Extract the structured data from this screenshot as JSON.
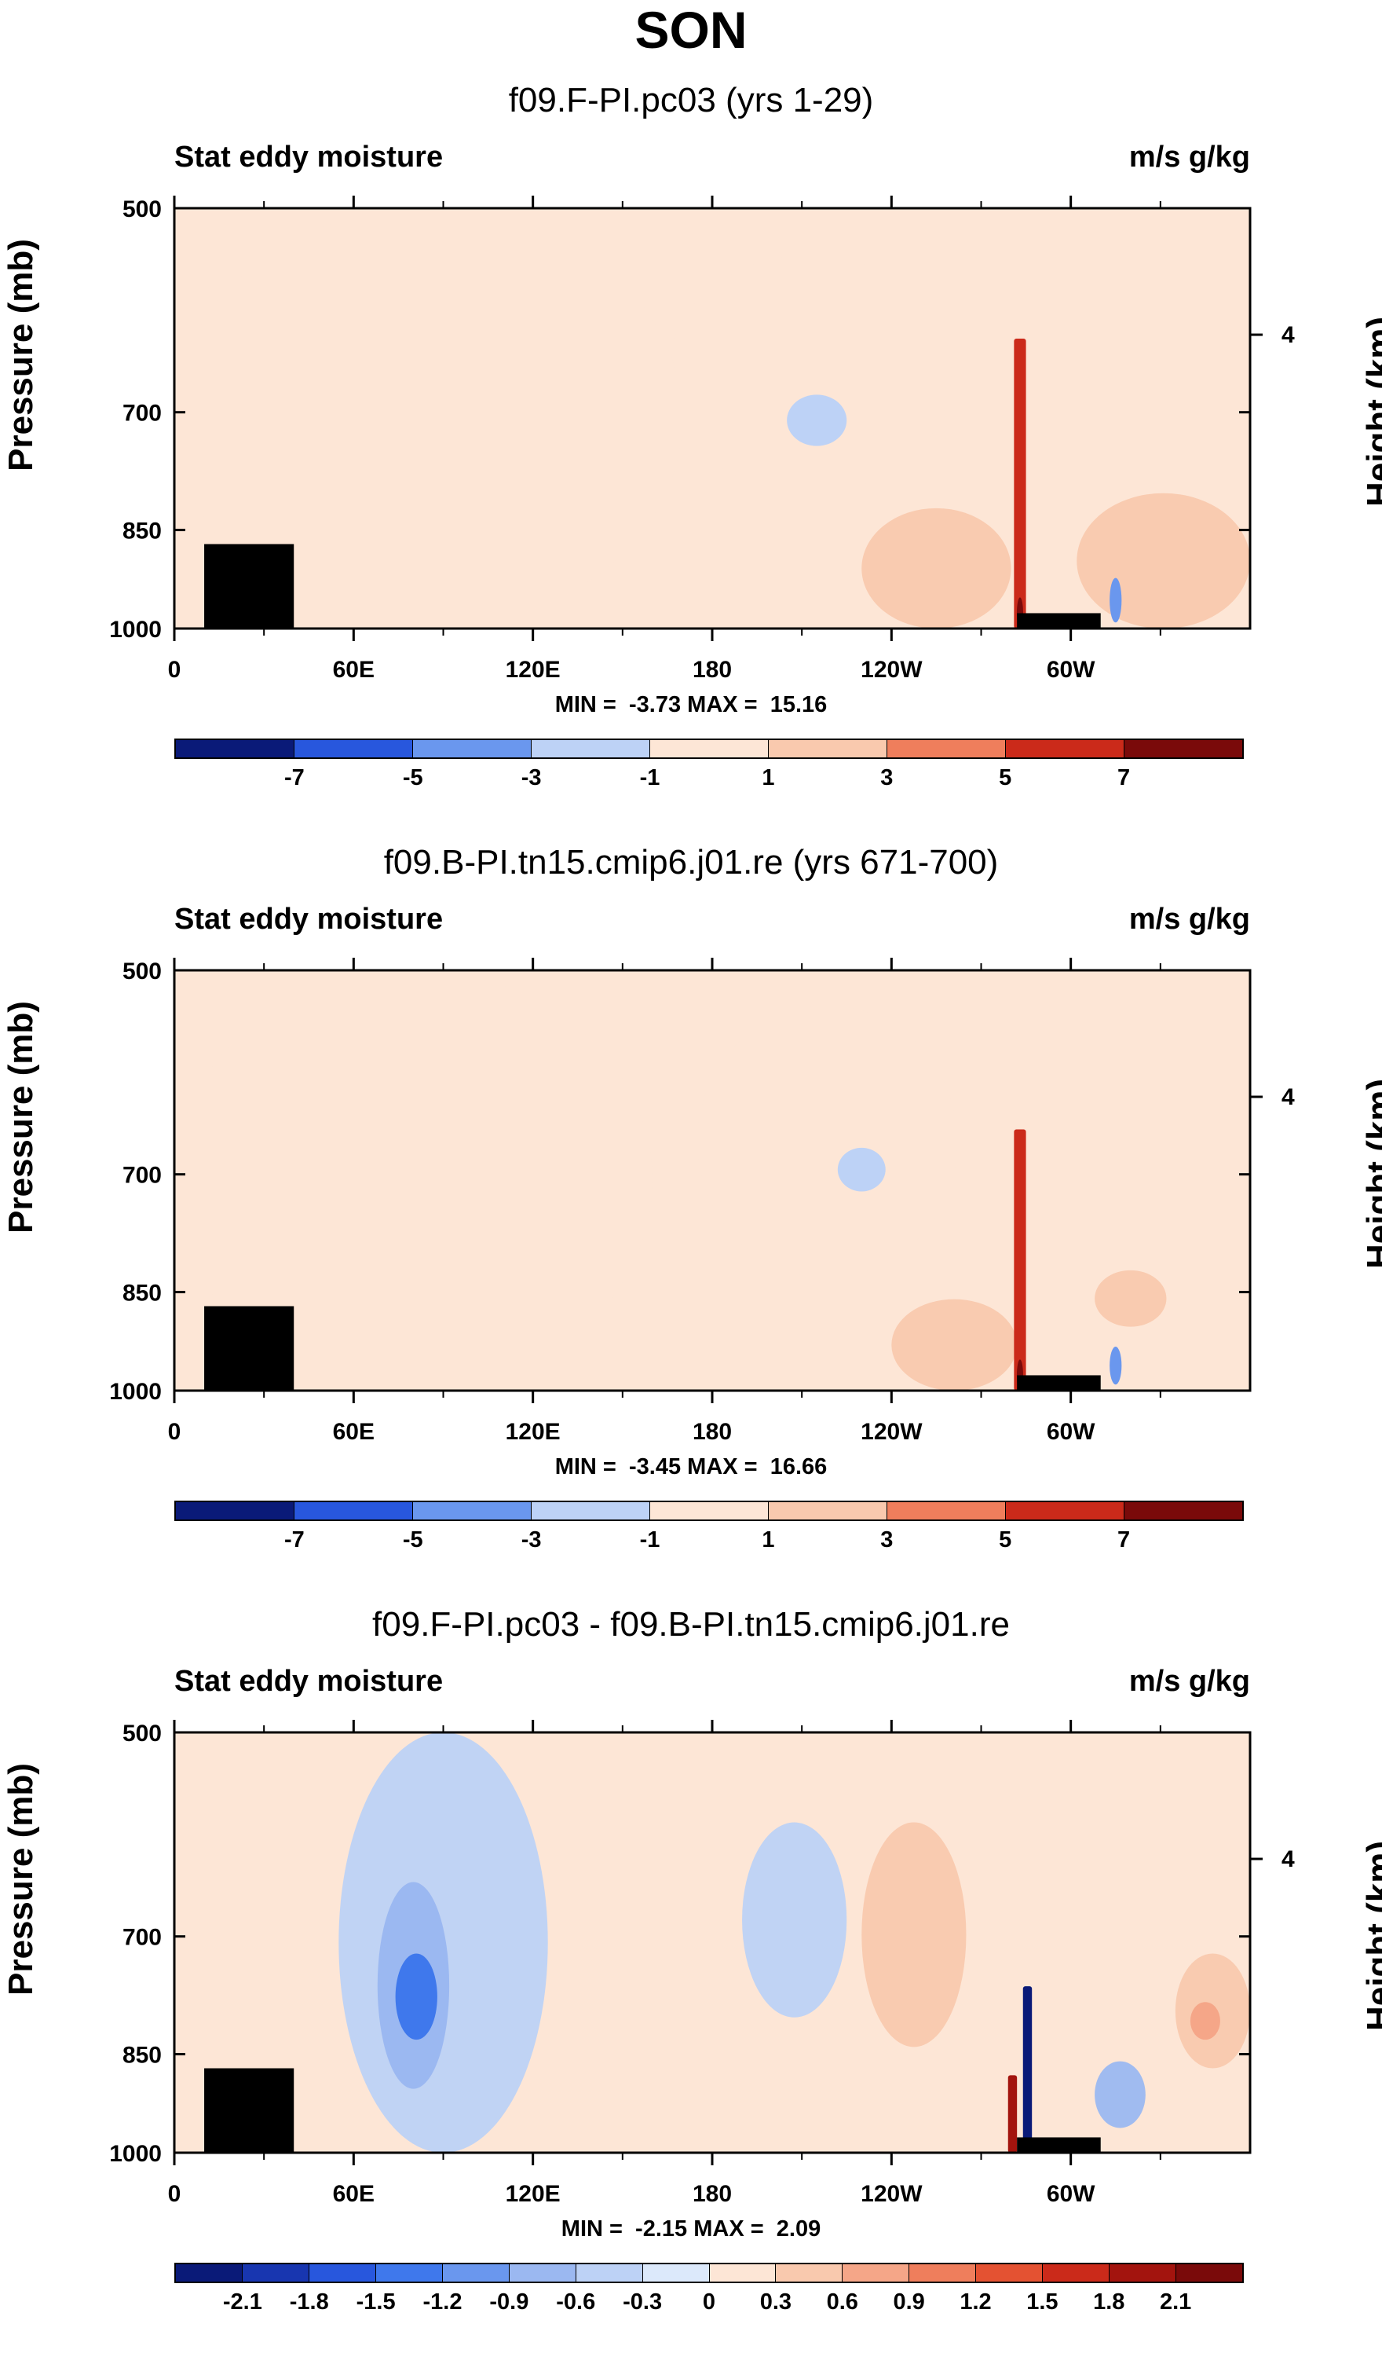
{
  "title": "SON",
  "axes": {
    "left_label": "Stat eddy moisture",
    "right_label": "m/s g/kg",
    "ylabel": "Pressure (mb)",
    "ylabel_right": "Height (km)",
    "yticks": [
      "500",
      "700",
      "850",
      "1000"
    ],
    "ytick_values": [
      500,
      700,
      850,
      1000
    ],
    "right_tick_label": "4",
    "right_tick_pressure": 616,
    "xticks": [
      "0",
      "60E",
      "120E",
      "180",
      "120W",
      "60W"
    ],
    "xtick_values": [
      0,
      60,
      120,
      180,
      240,
      300
    ],
    "xlim": [
      0,
      360
    ],
    "ylim": [
      500,
      1000
    ]
  },
  "colorbar": {
    "colors": [
      "#0a1a78",
      "#1836b0",
      "#2857dd",
      "#3f78ec",
      "#6a97ee",
      "#9bb8f1",
      "#bdd2f6",
      "#dce9fb",
      "#fde6d6",
      "#f9c9ae",
      "#f5a688",
      "#ef7e5c",
      "#e45232",
      "#cb2a1a",
      "#a3140e",
      "#7a0a0a"
    ]
  },
  "panels": [
    {
      "title": "f09.F-PI.pc03 (yrs 1-29)",
      "min_label": "MIN =  -3.73",
      "max_label": "MAX =  15.16",
      "colorbar_labels": [
        "-7",
        "-5",
        "-3",
        "-1",
        "1",
        "3",
        "5",
        "7"
      ]
    },
    {
      "title": "f09.B-PI.tn15.cmip6.j01.re (yrs 671-700)",
      "min_label": "MIN =  -3.45",
      "max_label": "MAX =  16.66",
      "colorbar_labels": [
        "-7",
        "-5",
        "-3",
        "-1",
        "1",
        "3",
        "5",
        "7"
      ]
    },
    {
      "title": "f09.F-PI.pc03 - f09.B-PI.tn15.cmip6.j01.re",
      "min_label": "MIN =  -2.15",
      "max_label": "MAX =  2.09",
      "colorbar_labels": [
        "-2.1",
        "-1.8",
        "-1.5",
        "-1.2",
        "-0.9",
        "-0.6",
        "-0.3",
        "0",
        "0.3",
        "0.6",
        "0.9",
        "1.2",
        "1.5",
        "1.8",
        "2.1"
      ]
    }
  ],
  "chart_data": [
    {
      "type": "heatmap",
      "title": "f09.F-PI.pc03 (yrs 1-29)",
      "subtitle": "SON",
      "left_label": "Stat eddy moisture",
      "units": "m/s g/kg",
      "xlabel": "",
      "ylabel": "Pressure (mb)",
      "ylabel_right": "Height (km)",
      "xlim": [
        0,
        360
      ],
      "ylim": [
        1000,
        500
      ],
      "min": -3.73,
      "max": 15.16,
      "levels": [
        -7,
        -5,
        -3,
        -1,
        1,
        3,
        5,
        7
      ],
      "features": [
        {
          "kind": "region",
          "x": [
            165,
            260
          ],
          "p": [
            540,
            800
          ],
          "value": -0.8
        },
        {
          "kind": "center",
          "x": [
            205,
            225
          ],
          "p": [
            680,
            740
          ],
          "value": -2.0
        },
        {
          "kind": "region",
          "x": [
            0,
            170
          ],
          "p": [
            500,
            1000
          ],
          "value": -0.5
        },
        {
          "kind": "region",
          "x": [
            230,
            280
          ],
          "p": [
            820,
            1000
          ],
          "value": 2.0
        },
        {
          "kind": "column",
          "x": [
            281,
            285
          ],
          "p": [
            620,
            1000
          ],
          "value": 6.0
        },
        {
          "kind": "center",
          "x": [
            282,
            284
          ],
          "p": [
            950,
            1000
          ],
          "value": 15.16
        },
        {
          "kind": "region",
          "x": [
            302,
            360
          ],
          "p": [
            800,
            1000
          ],
          "value": 1.5
        },
        {
          "kind": "center",
          "x": [
            313,
            317
          ],
          "p": [
            920,
            990
          ],
          "value": -3.73
        },
        {
          "kind": "topography",
          "x": [
            10,
            40
          ],
          "p": [
            870,
            1000
          ]
        },
        {
          "kind": "topography",
          "x": [
            282,
            310
          ],
          "p": [
            975,
            1000
          ]
        }
      ]
    },
    {
      "type": "heatmap",
      "title": "f09.B-PI.tn15.cmip6.j01.re (yrs 671-700)",
      "subtitle": "SON",
      "left_label": "Stat eddy moisture",
      "units": "m/s g/kg",
      "xlabel": "",
      "ylabel": "Pressure (mb)",
      "ylabel_right": "Height (km)",
      "xlim": [
        0,
        360
      ],
      "ylim": [
        1000,
        500
      ],
      "min": -3.45,
      "max": 16.66,
      "levels": [
        -7,
        -5,
        -3,
        -1,
        1,
        3,
        5,
        7
      ],
      "features": [
        {
          "kind": "region",
          "x": [
            175,
            262
          ],
          "p": [
            530,
            830
          ],
          "value": -0.8
        },
        {
          "kind": "center",
          "x": [
            222,
            238
          ],
          "p": [
            670,
            720
          ],
          "value": -2.0
        },
        {
          "kind": "region",
          "x": [
            0,
            160
          ],
          "p": [
            500,
            1000
          ],
          "value": -0.5
        },
        {
          "kind": "region",
          "x": [
            240,
            282
          ],
          "p": [
            860,
            1000
          ],
          "value": 2.0
        },
        {
          "kind": "column",
          "x": [
            281,
            285
          ],
          "p": [
            650,
            1000
          ],
          "value": 6.0
        },
        {
          "kind": "center",
          "x": [
            282,
            284
          ],
          "p": [
            950,
            1000
          ],
          "value": 16.66
        },
        {
          "kind": "region",
          "x": [
            308,
            332
          ],
          "p": [
            820,
            900
          ],
          "value": 2.0
        },
        {
          "kind": "center",
          "x": [
            313,
            317
          ],
          "p": [
            930,
            990
          ],
          "value": -3.45
        },
        {
          "kind": "topography",
          "x": [
            10,
            40
          ],
          "p": [
            870,
            1000
          ]
        },
        {
          "kind": "topography",
          "x": [
            282,
            310
          ],
          "p": [
            975,
            1000
          ]
        }
      ]
    },
    {
      "type": "heatmap",
      "title": "f09.F-PI.pc03 - f09.B-PI.tn15.cmip6.j01.re",
      "subtitle": "SON",
      "left_label": "Stat eddy moisture",
      "units": "m/s g/kg",
      "xlabel": "",
      "ylabel": "Pressure (mb)",
      "ylabel_right": "Height (km)",
      "xlim": [
        0,
        360
      ],
      "ylim": [
        1000,
        500
      ],
      "min": -2.15,
      "max": 2.09,
      "levels": [
        -2.1,
        -1.8,
        -1.5,
        -1.2,
        -0.9,
        -0.6,
        -0.3,
        0,
        0.3,
        0.6,
        0.9,
        1.2,
        1.5,
        1.8,
        2.1
      ],
      "features": [
        {
          "kind": "region",
          "x": [
            55,
            125
          ],
          "p": [
            500,
            1000
          ],
          "value": -0.4
        },
        {
          "kind": "center",
          "x": [
            68,
            92
          ],
          "p": [
            640,
            900
          ],
          "value": -0.8
        },
        {
          "kind": "center",
          "x": [
            74,
            88
          ],
          "p": [
            720,
            830
          ],
          "value": -1.2
        },
        {
          "kind": "region",
          "x": [
            190,
            225
          ],
          "p": [
            580,
            800
          ],
          "value": -0.5
        },
        {
          "kind": "region",
          "x": [
            230,
            265
          ],
          "p": [
            580,
            840
          ],
          "value": 0.4
        },
        {
          "kind": "column",
          "x": [
            279,
            282
          ],
          "p": [
            880,
            1000
          ],
          "value": 2.09
        },
        {
          "kind": "column",
          "x": [
            284,
            287
          ],
          "p": [
            760,
            990
          ],
          "value": -2.15
        },
        {
          "kind": "region",
          "x": [
            308,
            325
          ],
          "p": [
            860,
            960
          ],
          "value": -0.8
        },
        {
          "kind": "region",
          "x": [
            335,
            360
          ],
          "p": [
            720,
            870
          ],
          "value": 0.5
        },
        {
          "kind": "center",
          "x": [
            340,
            350
          ],
          "p": [
            780,
            830
          ],
          "value": 0.9
        },
        {
          "kind": "topography",
          "x": [
            10,
            40
          ],
          "p": [
            870,
            1000
          ]
        },
        {
          "kind": "topography",
          "x": [
            282,
            310
          ],
          "p": [
            975,
            1000
          ]
        }
      ]
    }
  ]
}
